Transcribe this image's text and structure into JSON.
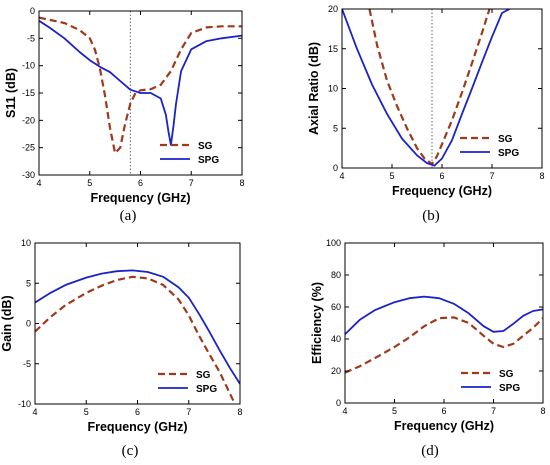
{
  "colors": {
    "SG": "#a0391c",
    "SPG": "#1a22c8",
    "marker": "#666666"
  },
  "chart_data": [
    {
      "type": "line",
      "caption": "(a)",
      "xlabel": "Frequency (GHz)",
      "ylabel": "S11 (dB)",
      "xlim": [
        4,
        8
      ],
      "ylim": [
        -30,
        0
      ],
      "xticks": [
        "4",
        "5",
        "6",
        "7",
        "8"
      ],
      "yticks": [
        "0",
        "-5",
        "-10",
        "-15",
        "-20",
        "-25",
        "-30"
      ],
      "xtick_values": [
        4,
        5,
        6,
        7,
        8
      ],
      "ytick_values": [
        0,
        -5,
        -10,
        -15,
        -20,
        -25,
        -30
      ],
      "marker_x": 5.8,
      "legend_position": "bottom-right",
      "series": [
        {
          "name": "SG",
          "style": "dashed",
          "x": [
            4.0,
            4.5,
            4.8,
            5.0,
            5.1,
            5.2,
            5.3,
            5.4,
            5.5,
            5.6,
            5.7,
            5.8,
            5.9,
            6.0,
            6.2,
            6.4,
            6.6,
            6.8,
            7.0,
            7.3,
            7.6,
            8.0
          ],
          "y": [
            -1.2,
            -2.2,
            -3.5,
            -5.0,
            -7.0,
            -10.5,
            -15.5,
            -21.5,
            -26.0,
            -25.0,
            -20.5,
            -17.0,
            -15.0,
            -14.5,
            -14.3,
            -13.5,
            -11.0,
            -7.0,
            -4.0,
            -3.0,
            -2.8,
            -2.8
          ]
        },
        {
          "name": "SPG",
          "style": "solid",
          "x": [
            4.0,
            4.2,
            4.5,
            4.8,
            5.0,
            5.2,
            5.4,
            5.6,
            5.8,
            6.0,
            6.2,
            6.4,
            6.5,
            6.55,
            6.6,
            6.65,
            6.7,
            6.8,
            7.0,
            7.3,
            7.6,
            8.0
          ],
          "y": [
            -1.8,
            -3.0,
            -5.0,
            -7.5,
            -9.0,
            -10.2,
            -11.2,
            -12.8,
            -14.4,
            -15.0,
            -15.0,
            -16.0,
            -19.0,
            -22.0,
            -24.5,
            -21.0,
            -17.0,
            -11.0,
            -7.0,
            -5.5,
            -5.0,
            -4.5
          ]
        }
      ]
    },
    {
      "type": "line",
      "caption": "(b)",
      "xlabel": "Frequency (GHz)",
      "ylabel": "Axial Ratio (dB)",
      "xlim": [
        4,
        8
      ],
      "ylim": [
        0,
        20
      ],
      "xticks": [
        "4",
        "5",
        "6",
        "7",
        "8"
      ],
      "yticks": [
        "0",
        "5",
        "10",
        "15",
        "20"
      ],
      "xtick_values": [
        4,
        5,
        6,
        7,
        8
      ],
      "ytick_values": [
        0,
        5,
        10,
        15,
        20
      ],
      "marker_x": 5.8,
      "legend_position": "bottom-right",
      "series": [
        {
          "name": "SG",
          "style": "dashed",
          "x": [
            4.55,
            4.7,
            4.9,
            5.1,
            5.3,
            5.5,
            5.65,
            5.8,
            5.9,
            6.0,
            6.2,
            6.4,
            6.6,
            6.8,
            6.95
          ],
          "y": [
            20.0,
            15.5,
            11.0,
            7.8,
            5.0,
            2.5,
            1.2,
            0.5,
            1.5,
            3.0,
            6.0,
            9.5,
            13.2,
            17.0,
            20.0
          ]
        },
        {
          "name": "SPG",
          "style": "solid",
          "x": [
            4.0,
            4.3,
            4.6,
            4.9,
            5.2,
            5.5,
            5.7,
            5.85,
            6.0,
            6.2,
            6.4,
            6.6,
            6.8,
            7.0,
            7.2,
            7.35
          ],
          "y": [
            20.0,
            15.0,
            10.5,
            6.8,
            3.7,
            1.6,
            0.6,
            0.3,
            1.2,
            3.5,
            6.8,
            10.0,
            13.3,
            16.5,
            19.5,
            20.0
          ]
        }
      ]
    },
    {
      "type": "line",
      "caption": "(c)",
      "xlabel": "Frequency (GHz)",
      "ylabel": "Gain (dB)",
      "xlim": [
        4,
        8
      ],
      "ylim": [
        -10,
        10
      ],
      "xticks": [
        "4",
        "5",
        "6",
        "7",
        "8"
      ],
      "yticks": [
        "10",
        "5",
        "0",
        "-5",
        "-10"
      ],
      "xtick_values": [
        4,
        5,
        6,
        7,
        8
      ],
      "ytick_values": [
        10,
        5,
        0,
        -5,
        -10
      ],
      "legend_position": "bottom-right",
      "series": [
        {
          "name": "SG",
          "style": "dashed",
          "x": [
            4.0,
            4.3,
            4.6,
            5.0,
            5.3,
            5.6,
            5.9,
            6.2,
            6.5,
            6.8,
            7.0,
            7.2,
            7.4,
            7.6,
            7.75,
            7.9
          ],
          "y": [
            -1.0,
            0.8,
            2.3,
            3.8,
            4.7,
            5.4,
            5.8,
            5.6,
            4.8,
            3.0,
            1.0,
            -1.5,
            -3.8,
            -6.0,
            -8.0,
            -10.0
          ]
        },
        {
          "name": "SPG",
          "style": "solid",
          "x": [
            4.0,
            4.3,
            4.6,
            5.0,
            5.3,
            5.6,
            5.9,
            6.2,
            6.5,
            6.8,
            7.0,
            7.2,
            7.4,
            7.6,
            7.8,
            8.0
          ],
          "y": [
            2.6,
            3.8,
            4.8,
            5.7,
            6.2,
            6.5,
            6.6,
            6.4,
            5.8,
            4.5,
            3.2,
            1.2,
            -1.0,
            -3.3,
            -5.5,
            -7.5
          ]
        }
      ]
    },
    {
      "type": "line",
      "caption": "(d)",
      "xlabel": "Frequency (GHz)",
      "ylabel": "Efficiency (%)",
      "xlim": [
        4,
        8
      ],
      "ylim": [
        0,
        100
      ],
      "xticks": [
        "4",
        "5",
        "6",
        "7",
        "8"
      ],
      "yticks": [
        "0",
        "20",
        "40",
        "60",
        "80",
        "100"
      ],
      "xtick_values": [
        4,
        5,
        6,
        7,
        8
      ],
      "ytick_values": [
        0,
        20,
        40,
        60,
        80,
        100
      ],
      "legend_position": "bottom-right",
      "series": [
        {
          "name": "SG",
          "style": "dashed",
          "x": [
            4.0,
            4.3,
            4.6,
            5.0,
            5.3,
            5.6,
            5.9,
            6.2,
            6.5,
            6.8,
            7.0,
            7.2,
            7.4,
            7.6,
            7.8,
            8.0
          ],
          "y": [
            19.0,
            23.0,
            28.0,
            35.0,
            41.0,
            48.0,
            53.0,
            53.5,
            50.0,
            42.0,
            37.0,
            35.0,
            37.0,
            42.0,
            47.0,
            53.0
          ]
        },
        {
          "name": "SPG",
          "style": "solid",
          "x": [
            4.0,
            4.3,
            4.6,
            5.0,
            5.3,
            5.6,
            5.9,
            6.2,
            6.5,
            6.8,
            7.0,
            7.2,
            7.4,
            7.6,
            7.8,
            8.0
          ],
          "y": [
            43.0,
            52.0,
            58.0,
            63.0,
            65.5,
            66.5,
            65.5,
            62.0,
            56.0,
            48.0,
            44.5,
            45.0,
            49.5,
            54.5,
            57.5,
            58.5
          ]
        }
      ]
    }
  ]
}
